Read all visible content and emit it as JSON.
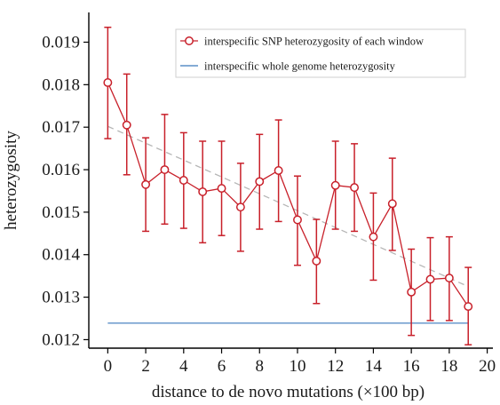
{
  "chart_data": {
    "type": "line",
    "xlabel": "distance to de novo mutations (×100 bp)",
    "ylabel": "heterozygosity",
    "xlim": [
      -1,
      20.3
    ],
    "ylim": [
      0.0118,
      0.0197
    ],
    "x_ticks": [
      0,
      2,
      4,
      6,
      8,
      10,
      12,
      14,
      16,
      18,
      20
    ],
    "y_ticks": [
      0.012,
      0.013,
      0.014,
      0.015,
      0.016,
      0.017,
      0.018,
      0.019
    ],
    "legend_position": "top-right",
    "series": [
      {
        "name": "interspecific SNP heterozygosity of each window",
        "color": "#c8202a",
        "marker": "open-circle",
        "x": [
          0,
          1,
          2,
          3,
          4,
          5,
          6,
          7,
          8,
          9,
          10,
          11,
          12,
          13,
          14,
          15,
          16,
          17,
          18,
          19
        ],
        "y": [
          0.01805,
          0.01705,
          0.01565,
          0.016,
          0.01575,
          0.01548,
          0.01556,
          0.01512,
          0.01572,
          0.01598,
          0.01482,
          0.01385,
          0.01563,
          0.01558,
          0.01442,
          0.0152,
          0.01312,
          0.01342,
          0.01345,
          0.01278
        ],
        "y_upper": [
          0.01935,
          0.01825,
          0.01675,
          0.0173,
          0.01687,
          0.01667,
          0.01667,
          0.01615,
          0.01683,
          0.01717,
          0.01585,
          0.01483,
          0.01667,
          0.01661,
          0.01545,
          0.01627,
          0.01413,
          0.0144,
          0.01442,
          0.0137
        ],
        "y_lower": [
          0.01673,
          0.01588,
          0.01455,
          0.01472,
          0.01462,
          0.01428,
          0.01445,
          0.01408,
          0.0146,
          0.01478,
          0.01375,
          0.01285,
          0.0146,
          0.01455,
          0.0134,
          0.0141,
          0.0121,
          0.01245,
          0.01245,
          0.01188
        ]
      },
      {
        "name": "interspecific whole genome heterozygosity",
        "color": "#5b8fc7",
        "style": "solid",
        "x": [
          0,
          19
        ],
        "y": [
          0.01239,
          0.01239
        ]
      },
      {
        "color": "#b5b5b5",
        "style": "dashed",
        "x": [
          0,
          19
        ],
        "y": [
          0.01702,
          0.01325
        ]
      }
    ]
  }
}
